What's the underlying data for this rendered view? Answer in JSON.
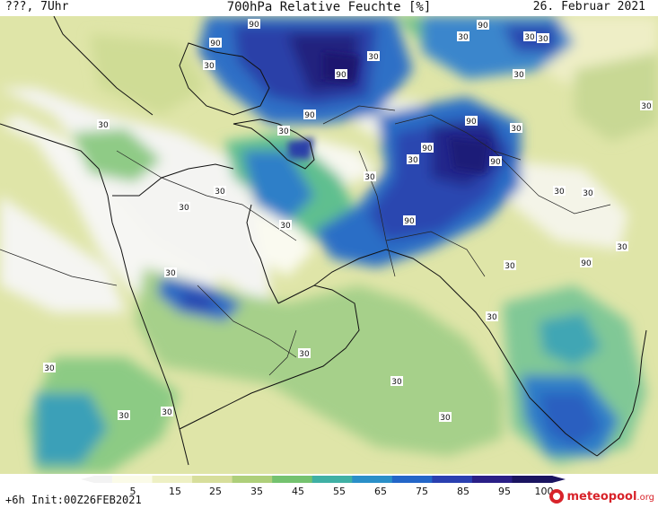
{
  "header": {
    "left": "???, 7Uhr",
    "title": "700hPa Relative Feuchte [%]",
    "date": "26. Februar 2021"
  },
  "map": {
    "contour_labels": [
      "90",
      "90",
      "90",
      "30",
      "30",
      "90",
      "30",
      "90",
      "90",
      "30",
      "30",
      "30",
      "90",
      "90",
      "90",
      "30",
      "30",
      "30",
      "30",
      "30",
      "30",
      "30",
      "30",
      "30",
      "90",
      "30",
      "30",
      "30",
      "30",
      "30",
      "30",
      "30",
      "30",
      "30",
      "30",
      "30",
      "30"
    ]
  },
  "colorbar": {
    "ticks": [
      "5",
      "15",
      "25",
      "35",
      "45",
      "55",
      "65",
      "75",
      "85",
      "95",
      "100"
    ],
    "colors": [
      "#f3f3f3",
      "#fbfbe8",
      "#eef0c4",
      "#d7de9b",
      "#aecf7a",
      "#74c26f",
      "#3fb0a4",
      "#2a8fc8",
      "#2366c8",
      "#2a3fb0",
      "#2a1f86",
      "#1a1460"
    ]
  },
  "footer": {
    "init": "+6h Init:00Z26FEB2021",
    "brand_name": "meteopool",
    "brand_tld": ".org"
  }
}
